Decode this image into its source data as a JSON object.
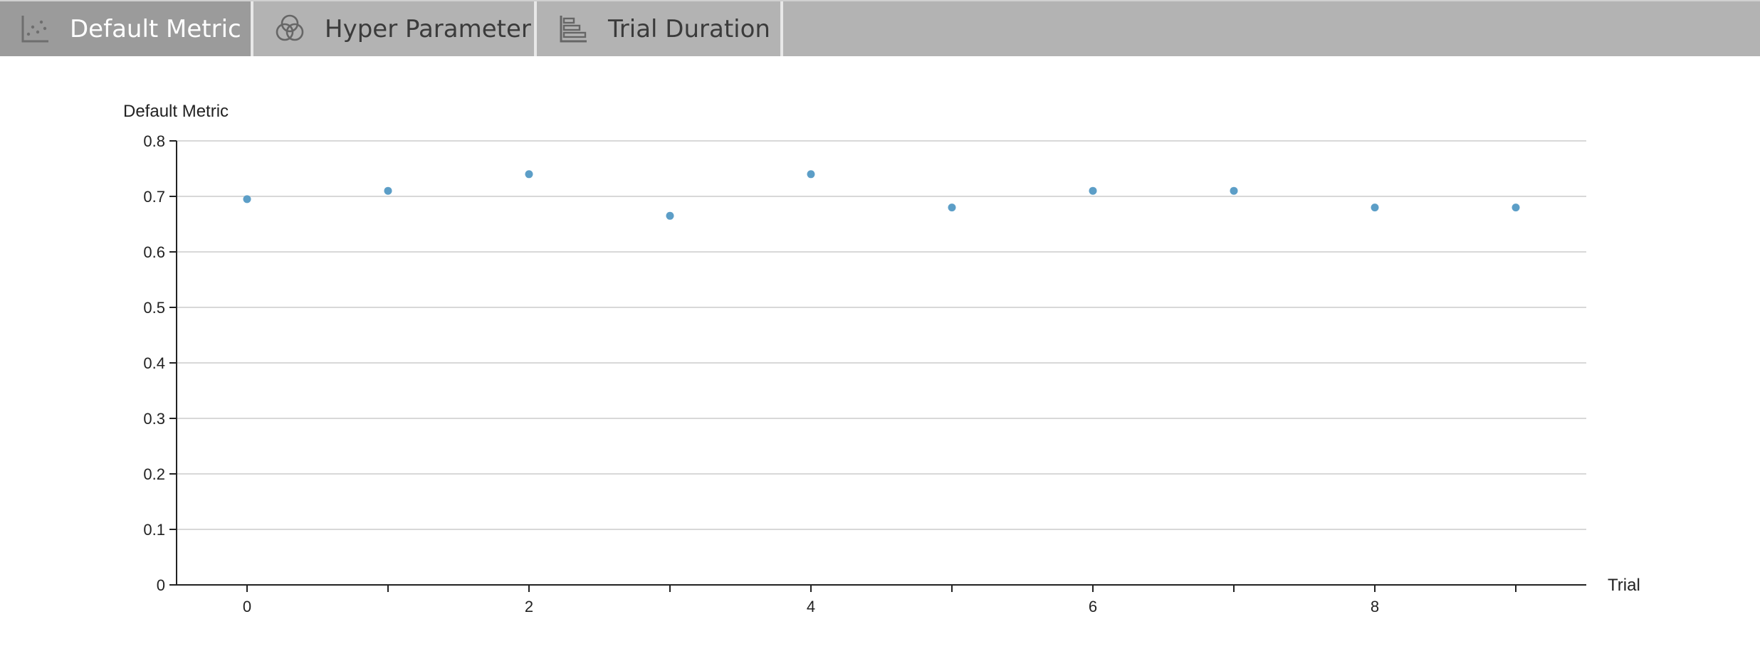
{
  "tabs": [
    {
      "label": "Default Metric",
      "icon": "scatter-chart-icon",
      "active": true
    },
    {
      "label": "Hyper Parameter",
      "icon": "venn-circles-icon",
      "active": false
    },
    {
      "label": "Trial Duration",
      "icon": "horizontal-bar-chart-icon",
      "active": false
    }
  ],
  "colors": {
    "tabbar_bg": "#b3b3b3",
    "tab_active_bg": "#9b9b9b",
    "point": "#5c9ec7",
    "grid": "#cccccc"
  },
  "chart_data": {
    "type": "scatter",
    "title": "",
    "xlabel": "Trial",
    "ylabel": "Default Metric",
    "xlim": [
      -0.5,
      9.5
    ],
    "ylim": [
      0,
      0.8
    ],
    "xticks": [
      0,
      1,
      2,
      3,
      4,
      5,
      6,
      7,
      8,
      9
    ],
    "xtick_labels": [
      "0",
      "",
      "2",
      "",
      "4",
      "",
      "6",
      "",
      "8",
      ""
    ],
    "yticks": [
      0,
      0.1,
      0.2,
      0.3,
      0.4,
      0.5,
      0.6,
      0.7,
      0.8
    ],
    "ytick_labels": [
      "0",
      "0.1",
      "0.2",
      "0.3",
      "0.4",
      "0.5",
      "0.6",
      "0.7",
      "0.8"
    ],
    "grid": "horizontal",
    "series": [
      {
        "x": [
          0,
          1,
          2,
          3,
          4,
          5,
          6,
          7,
          8,
          9
        ],
        "y": [
          0.695,
          0.71,
          0.74,
          0.665,
          0.74,
          0.68,
          0.71,
          0.71,
          0.68,
          0.68
        ]
      }
    ]
  }
}
